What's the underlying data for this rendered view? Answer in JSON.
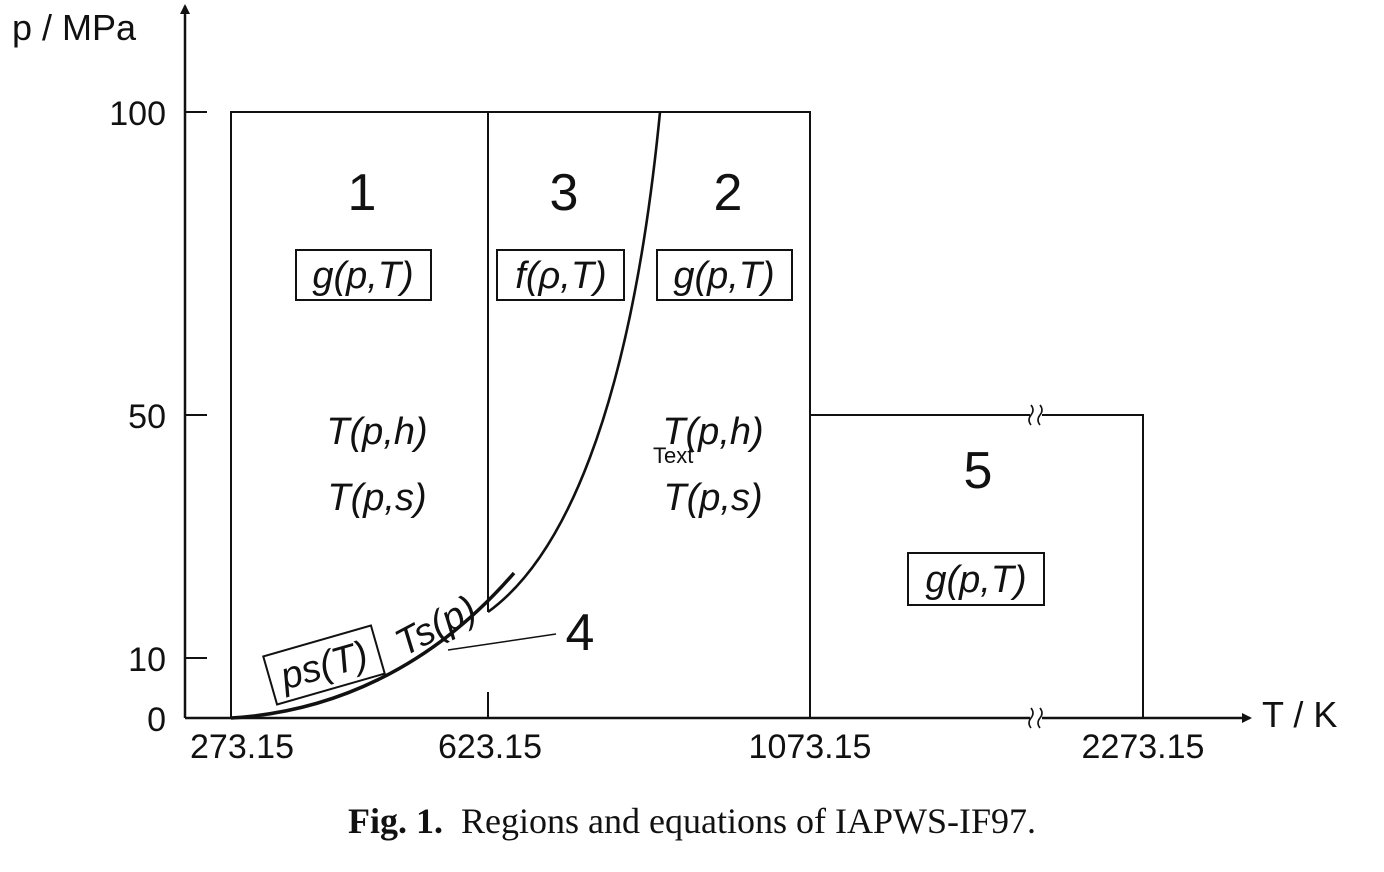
{
  "axes": {
    "y_label": "p / MPa",
    "x_label": "T / K",
    "y_ticks": [
      "100",
      "50",
      "10",
      "0"
    ],
    "x_ticks": [
      "273.15",
      "623.15",
      "1073.15",
      "2273.15"
    ]
  },
  "regions": [
    {
      "number": "1",
      "equation": "g(p,T)",
      "backward": [
        "T(p,h)",
        "T(p,s)"
      ]
    },
    {
      "number": "3",
      "equation": "f(ρ,T)"
    },
    {
      "number": "2",
      "equation": "g(p,T)",
      "backward": [
        "T(p,h)",
        "T(p,s)"
      ]
    },
    {
      "number": "5",
      "equation": "g(p,T)"
    }
  ],
  "saturation": {
    "number": "4",
    "boxed_equation": "ps(T)",
    "curve_label": "Ts(p)"
  },
  "stray_text": "Text",
  "caption": {
    "bold": "Fig. 1.",
    "text": "Regions and equations of IAPWS-IF97."
  },
  "colors": {
    "ink": "#111111",
    "background": "#ffffff"
  }
}
